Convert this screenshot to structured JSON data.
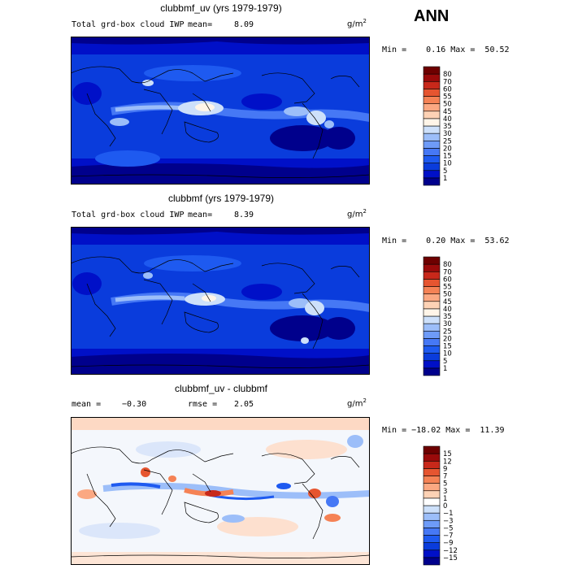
{
  "header": {
    "season": "ANN"
  },
  "units": "g/m",
  "units_exp": "2",
  "panels": [
    {
      "title": "clubbmf_uv (yrs 1979-1979)",
      "subtitle": "Total grd-box cloud IWP",
      "stat1_label": "mean=",
      "stat1_value": "8.09",
      "range_text": "Min =    0.16 Max =  50.52",
      "levels": [
        "1",
        "5",
        "10",
        "15",
        "20",
        "25",
        "30",
        "35",
        "40",
        "45",
        "50",
        "55",
        "60",
        "70",
        "80"
      ],
      "colors": [
        "#00008c",
        "#0010c8",
        "#0a3cdc",
        "#1e5af0",
        "#4678f5",
        "#6e9bf8",
        "#9cbef9",
        "#cde0fa",
        "#fff5e8",
        "#fdd2b5",
        "#fba882",
        "#f58255",
        "#e65530",
        "#c8281a",
        "#9a0a0a",
        "#6e0000"
      ]
    },
    {
      "title": "clubbmf (yrs 1979-1979)",
      "subtitle": "Total grd-box cloud IWP",
      "stat1_label": "mean=",
      "stat1_value": "8.39",
      "range_text": "Min =    0.20 Max =  53.62",
      "levels": [
        "1",
        "5",
        "10",
        "15",
        "20",
        "25",
        "30",
        "35",
        "40",
        "45",
        "50",
        "55",
        "60",
        "70",
        "80"
      ],
      "colors": [
        "#00008c",
        "#0010c8",
        "#0a3cdc",
        "#1e5af0",
        "#4678f5",
        "#6e9bf8",
        "#9cbef9",
        "#cde0fa",
        "#fff5e8",
        "#fdd2b5",
        "#fba882",
        "#f58255",
        "#e65530",
        "#c8281a",
        "#9a0a0a",
        "#6e0000"
      ]
    },
    {
      "title": "clubbmf_uv - clubbmf",
      "stat1_label": "mean =",
      "stat1_value": "−0.30",
      "stat2_label": "rmse =",
      "stat2_value": "2.05",
      "range_text": "Min = −18.02 Max =  11.39",
      "levels": [
        "−15",
        "−12",
        "−9",
        "−7",
        "−5",
        "−3",
        "−1",
        "0",
        "1",
        "3",
        "5",
        "7",
        "9",
        "12",
        "15"
      ],
      "colors": [
        "#00008c",
        "#0010c8",
        "#0a3cdc",
        "#1e5af0",
        "#4678f5",
        "#6e9bf8",
        "#9cbef9",
        "#cde0fa",
        "#ffffff",
        "#fdd2b5",
        "#fba882",
        "#f58255",
        "#e65530",
        "#c8281a",
        "#9a0a0a",
        "#6e0000"
      ]
    }
  ]
}
